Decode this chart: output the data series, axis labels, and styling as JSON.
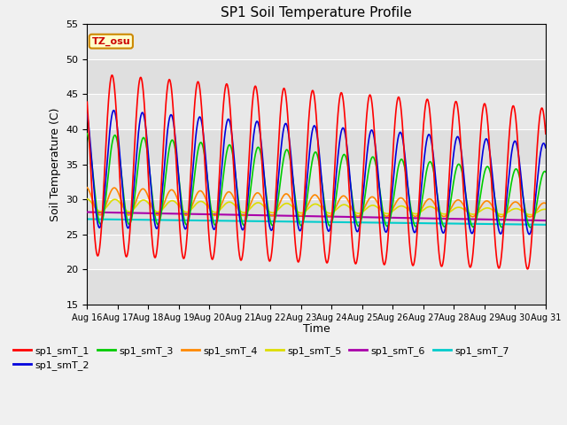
{
  "title": "SP1 Soil Temperature Profile",
  "xlabel": "Time",
  "ylabel": "Soil Temperature (C)",
  "ylim": [
    15,
    55
  ],
  "tz_label": "TZ_osu",
  "plot_bg": "#e8e8e8",
  "fig_bg": "#f0f0f0",
  "series_colors": {
    "sp1_smT_1": "#ff0000",
    "sp1_smT_2": "#0000dd",
    "sp1_smT_3": "#00cc00",
    "sp1_smT_4": "#ff8800",
    "sp1_smT_5": "#dddd00",
    "sp1_smT_6": "#aa00aa",
    "sp1_smT_7": "#00cccc"
  },
  "tick_labels": [
    "Aug 16",
    "Aug 17",
    "Aug 18",
    "Aug 19",
    "Aug 20",
    "Aug 21",
    "Aug 22",
    "Aug 23",
    "Aug 24",
    "Aug 25",
    "Aug 26",
    "Aug 27",
    "Aug 28",
    "Aug 29",
    "Aug 30",
    "Aug 31"
  ],
  "yticks": [
    15,
    20,
    25,
    30,
    35,
    40,
    45,
    50,
    55
  ],
  "n_days": 16,
  "figsize": [
    6.4,
    4.8
  ],
  "dpi": 100
}
